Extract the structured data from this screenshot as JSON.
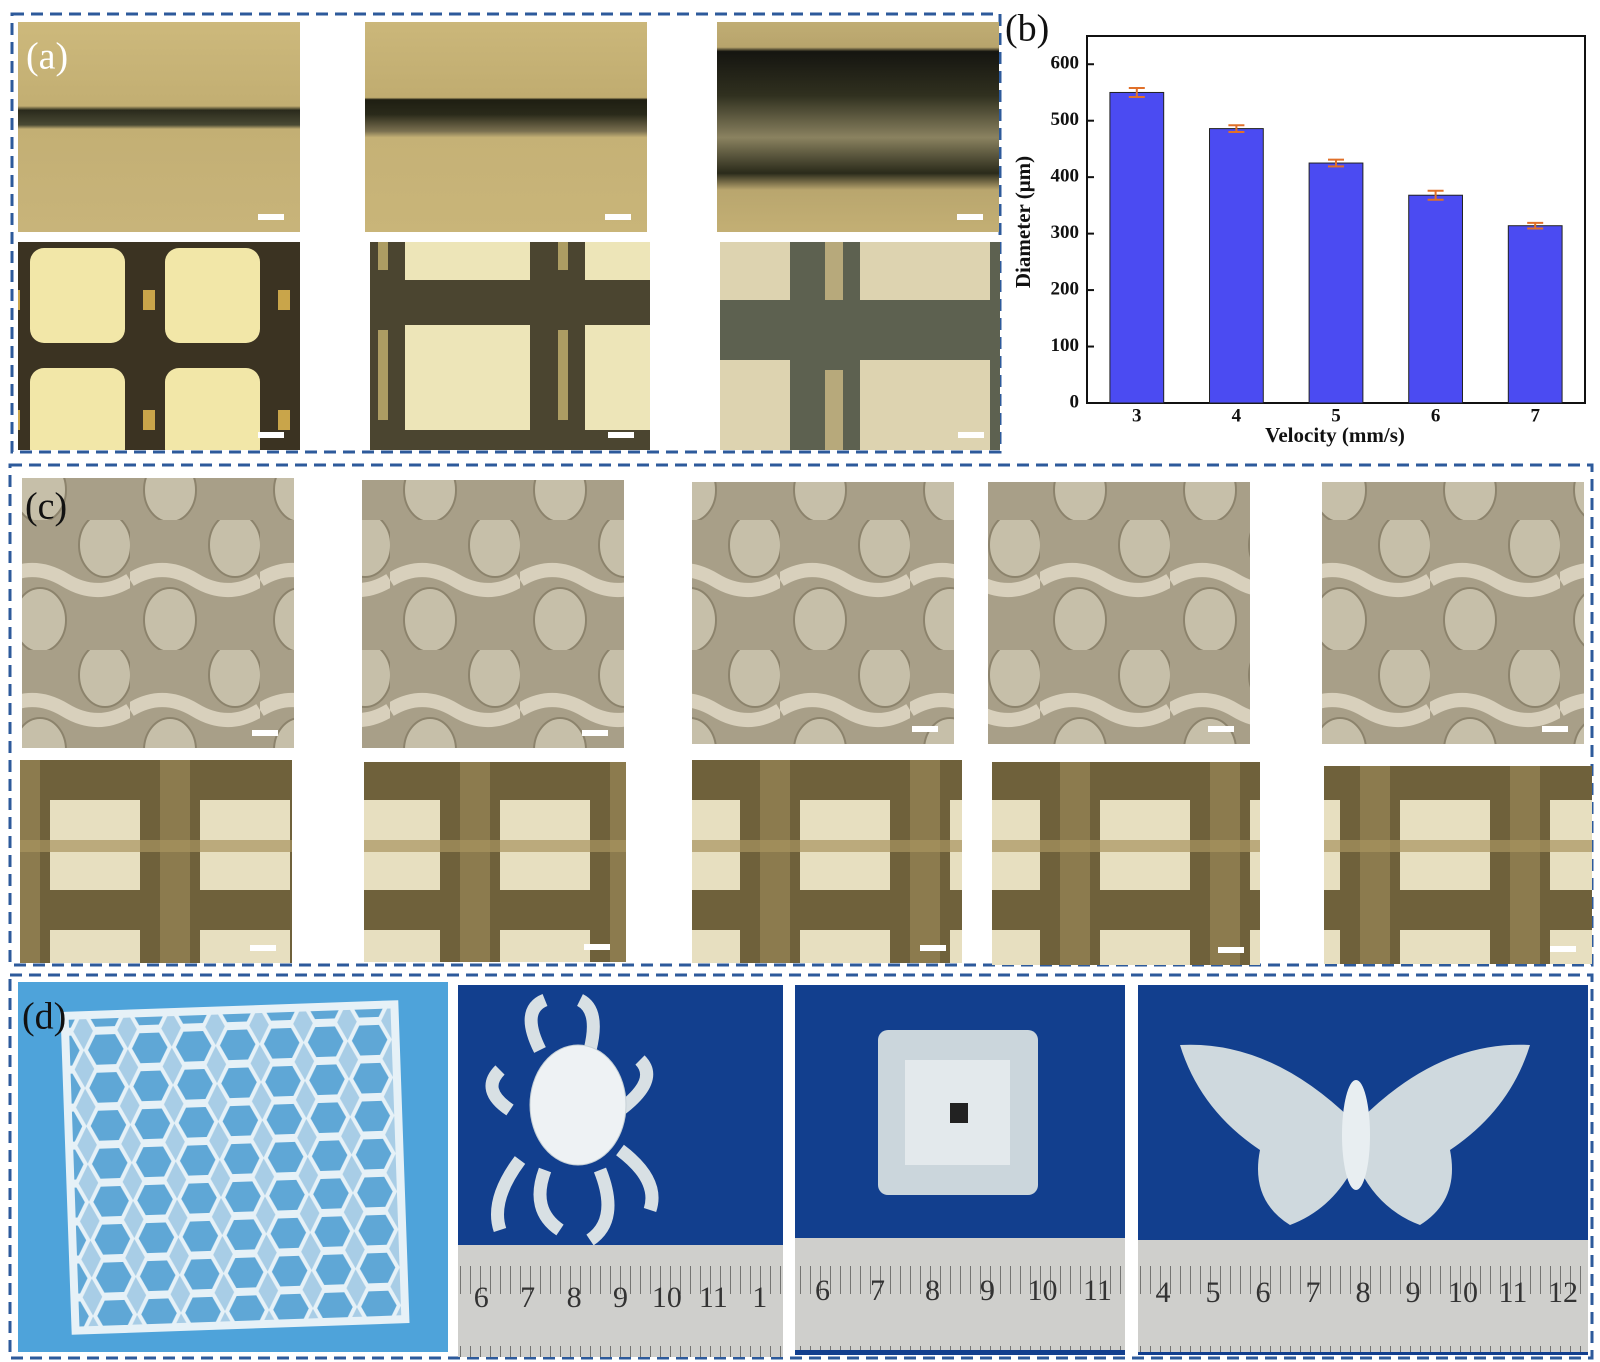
{
  "panels": {
    "a": "(a)",
    "b": "(b)",
    "c": "(c)",
    "d": "(d)"
  },
  "rulers": [
    [
      "6",
      "7",
      "8",
      "9",
      "10",
      "11",
      "1"
    ],
    [
      "6",
      "7",
      "8",
      "9",
      "10",
      "11"
    ],
    [
      "4",
      "5",
      "6",
      "7",
      "8",
      "9",
      "10",
      "11",
      "12"
    ]
  ],
  "chart_data": {
    "type": "bar",
    "categories": [
      "3",
      "4",
      "5",
      "6",
      "7"
    ],
    "values": [
      550,
      486,
      425,
      368,
      314
    ],
    "errors": [
      8,
      6,
      6,
      8,
      5
    ],
    "color": "#4b4bf2",
    "error_color": "#e0702a",
    "xlabel": "Velocity (mm/s)",
    "ylabel": "Diameter (μm)",
    "ylim": [
      0,
      650
    ],
    "yticks": [
      0,
      100,
      200,
      300,
      400,
      500,
      600
    ]
  }
}
